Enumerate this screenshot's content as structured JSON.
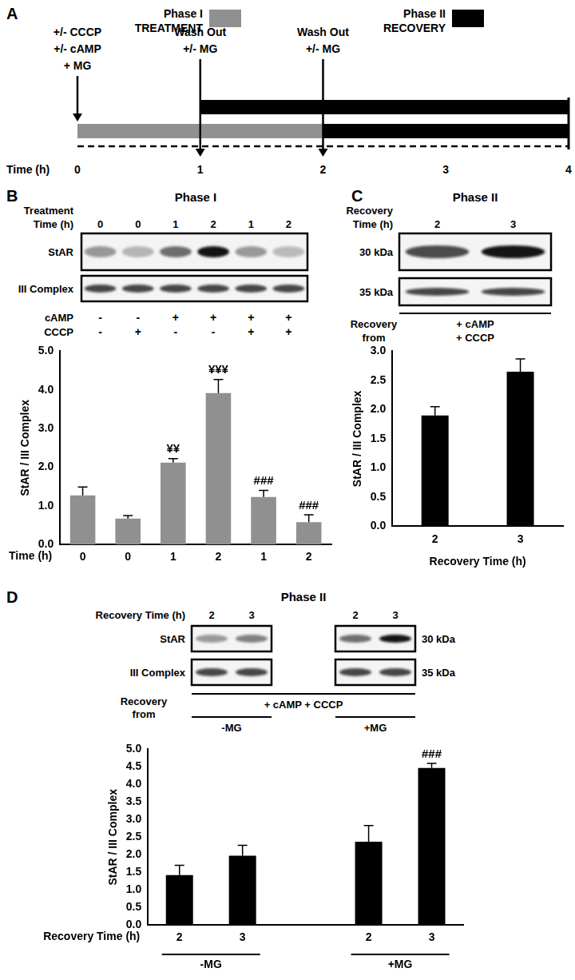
{
  "diagram": {
    "panel": "A",
    "legend": [
      {
        "title": "Phase I",
        "subtitle": "TREATMENT",
        "color": "#909090"
      },
      {
        "title": "Phase II",
        "subtitle": "RECOVERY",
        "color": "#000000"
      }
    ],
    "axis_label": "Time (h)",
    "ticks": [
      0,
      1,
      2,
      3,
      4
    ],
    "treatment": {
      "start": 0,
      "end": 2
    },
    "recovery": [
      {
        "start": 1,
        "end": 4
      },
      {
        "start": 2,
        "end": 4
      }
    ],
    "arrows": [
      {
        "time": 0,
        "lines": [
          "+/- CCCP",
          "+/- cAMP",
          "+ MG"
        ]
      },
      {
        "time": 1,
        "lines": [
          "Wash Out",
          "+/- MG"
        ]
      },
      {
        "time": 2,
        "lines": [
          "Wash Out",
          "+/- MG"
        ]
      }
    ]
  },
  "blots": [
    {
      "panel": "B",
      "title": "Phase I",
      "lane_header": [
        "Treatment",
        "Time (h)"
      ],
      "lanes": [
        "0",
        "0",
        "1",
        "2",
        "1",
        "2"
      ],
      "row_labels": [
        "StAR",
        "III Complex"
      ],
      "conditions": [
        {
          "name": "cAMP",
          "values": [
            "-",
            "-",
            "+",
            "+",
            "+",
            "+"
          ]
        },
        {
          "name": "CCCP",
          "values": [
            "-",
            "+",
            "-",
            "-",
            "+",
            "+"
          ]
        }
      ]
    },
    {
      "panel": "C",
      "title": "Phase II",
      "lane_header": [
        "Recovery",
        "Time (h)"
      ],
      "lanes": [
        "2",
        "3"
      ],
      "row_labels": [
        "30 kDa",
        "35 kDa"
      ],
      "recovery_from": {
        "label": [
          "Recovery",
          "from"
        ],
        "treatments": [
          "+ cAMP",
          "+ CCCP"
        ]
      }
    },
    {
      "panel": "D",
      "title": "Phase II",
      "lane_header": [
        "Recovery Time (h)"
      ],
      "lanes": [
        "2",
        "3",
        "2",
        "3"
      ],
      "row_labels": [
        "StAR",
        "III Complex"
      ],
      "mw_labels": [
        "30 kDa",
        "35 kDa"
      ],
      "recovery_from": {
        "label": [
          "Recovery",
          "from"
        ],
        "treatments": [
          "+ cAMP + CCCP"
        ]
      },
      "groups": [
        "-MG",
        "+MG"
      ]
    }
  ],
  "chart_data": [
    {
      "type": "bar",
      "color": "#909090",
      "categories": [
        "0",
        "0",
        "1",
        "2",
        "1",
        "2"
      ],
      "values": [
        1.27,
        0.67,
        2.12,
        3.92,
        1.23,
        0.58
      ],
      "errors": [
        0.22,
        0.08,
        0.1,
        0.35,
        0.17,
        0.19
      ],
      "annotations": [
        null,
        null,
        "¥¥",
        "¥¥¥",
        "###",
        "###"
      ],
      "y_label": "StAR / III Complex",
      "x_label": "Time (h)",
      "ylim": [
        0,
        5
      ],
      "yticks": [
        {
          "value": 0,
          "label": "0.0"
        },
        {
          "value": 1,
          "label": "1.0"
        },
        {
          "value": 2,
          "label": "2.0"
        },
        {
          "value": 3,
          "label": "3.0"
        },
        {
          "value": 4,
          "label": "4.0"
        },
        {
          "value": 5,
          "label": "5.0"
        }
      ],
      "grid": false
    },
    {
      "type": "bar",
      "color": "#000000",
      "categories": [
        "2",
        "3"
      ],
      "values": [
        1.9,
        2.65
      ],
      "errors": [
        0.15,
        0.22
      ],
      "y_label": "StAR / III Complex",
      "x_label": "Recovery Time (h)",
      "ylim": [
        0,
        3
      ],
      "yticks": [
        {
          "value": 0,
          "label": "0.0"
        },
        0.5,
        {
          "value": 1,
          "label": "1.0"
        },
        1.5,
        {
          "value": 2,
          "label": "2.0"
        },
        2.5,
        {
          "value": 3,
          "label": "3.0"
        }
      ],
      "grid": false
    },
    {
      "type": "bar",
      "color": "#000000",
      "categories": [
        "2",
        "3",
        null,
        "2",
        "3"
      ],
      "values": [
        1.42,
        1.97,
        null,
        2.37,
        4.47
      ],
      "errors": [
        0.28,
        0.3,
        null,
        0.46,
        0.13
      ],
      "annotations": [
        null,
        null,
        null,
        null,
        "###"
      ],
      "groups": [
        "-MG",
        "+MG"
      ],
      "y_label": "StAR / III Complex",
      "x_label": "Recovery Time (h)",
      "ylim": [
        0,
        5
      ],
      "yticks": [
        {
          "value": 0,
          "label": "0.0"
        },
        0.5,
        {
          "value": 1,
          "label": "1.0"
        },
        1.5,
        {
          "value": 2,
          "label": "2.0"
        },
        2.5,
        {
          "value": 3,
          "label": "3.0"
        },
        3.5,
        {
          "value": 4,
          "label": "4.0"
        },
        4.5,
        {
          "value": 5,
          "label": "5.0"
        }
      ],
      "grid": false
    }
  ]
}
